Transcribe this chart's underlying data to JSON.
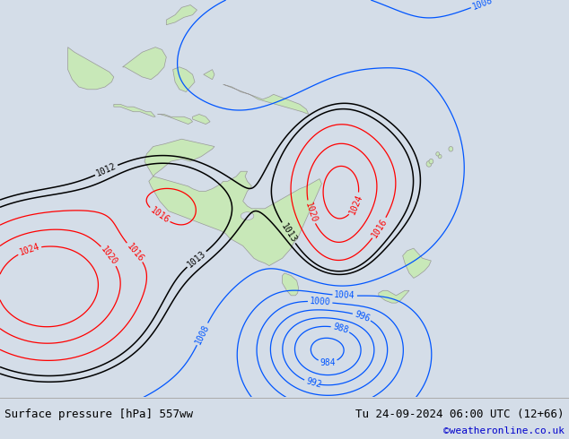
{
  "title_left": "Surface pressure [hPa] 557ww",
  "title_right": "Tu 24-09-2024 06:00 UTC (12+66)",
  "copyright": "©weatheronline.co.uk",
  "bg_color": "#d4dde8",
  "land_color": "#c8e8b8",
  "land_edge_color": "#999999",
  "fig_width": 6.34,
  "fig_height": 4.9,
  "dpi": 100,
  "bottom_bar_color": "#f4f4f4",
  "font_size_bottom": 9,
  "font_size_copyright": 8,
  "copyright_color": "#0000cc",
  "contour_blue": "#0055ff",
  "contour_red": "#ff0000",
  "contour_black": "#000000",
  "label_fontsize": 7,
  "map_xlim": [
    80,
    210
  ],
  "map_ylim": [
    -65,
    15
  ]
}
